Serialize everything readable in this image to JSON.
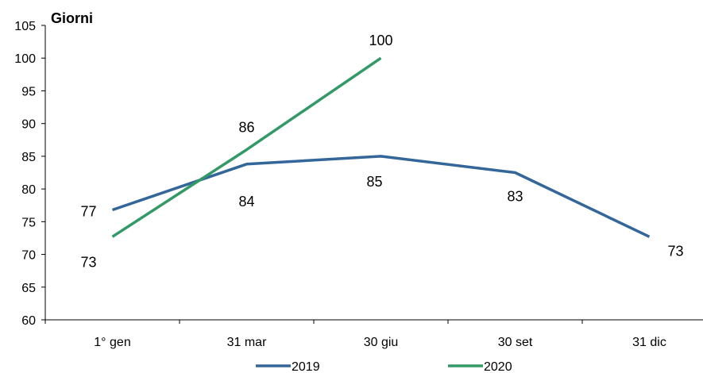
{
  "chart_data": {
    "type": "line",
    "ylabel": "Giorni",
    "ylim": [
      60,
      105
    ],
    "yticks": [
      60,
      65,
      70,
      75,
      80,
      85,
      90,
      95,
      100,
      105
    ],
    "categories": [
      "1° gen",
      "31 mar",
      "30 giu",
      "30 set",
      "31 dic"
    ],
    "grid": false,
    "legend_position": "bottom",
    "series": [
      {
        "name": "2019",
        "color": "#336699",
        "values": [
          76.8,
          83.8,
          85.0,
          82.5,
          72.7
        ],
        "labels": [
          "77",
          "84",
          "85",
          "83",
          "73"
        ]
      },
      {
        "name": "2020",
        "color": "#339966",
        "values": [
          72.7,
          86.0,
          100.0,
          null,
          null
        ],
        "labels": [
          "73",
          "86",
          "100",
          "",
          ""
        ]
      }
    ]
  }
}
